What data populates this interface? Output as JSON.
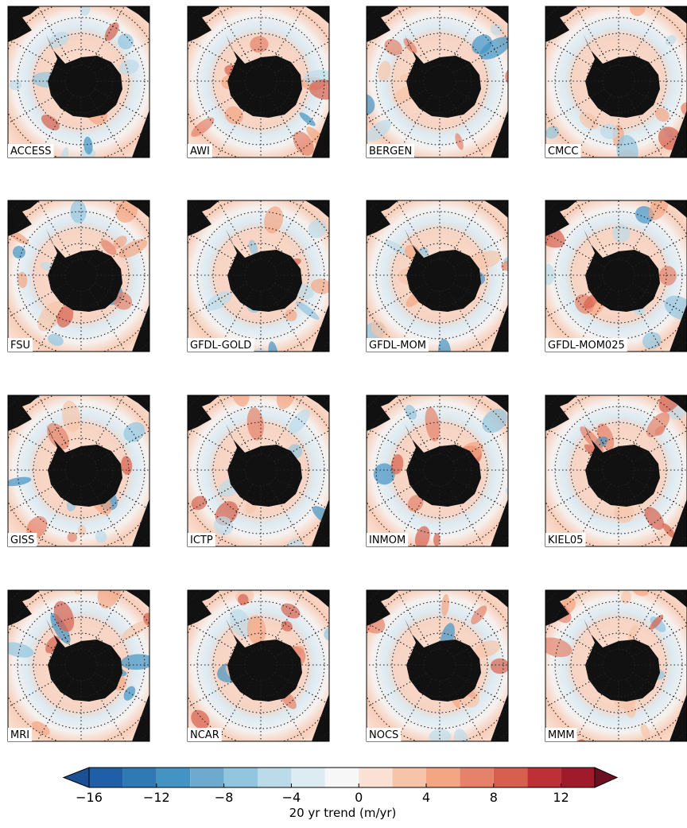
{
  "panels": [
    "ACCESS",
    "AWI",
    "BERGEN",
    "CMCC",
    "FSU",
    "GFDL-GOLD",
    "GFDL-MOM",
    "GFDL-MOM025",
    "GISS",
    "ICTP",
    "INMOM",
    "KIEL05",
    "MRI",
    "NCAR",
    "NOCS",
    "MMM"
  ],
  "colorbar": {
    "levels": [
      -16,
      -14,
      -12,
      -10,
      -8,
      -6,
      -4,
      -2,
      0,
      2,
      4,
      6,
      8,
      10,
      12,
      14
    ],
    "colors": [
      "#1f5fa8",
      "#2f79b5",
      "#4393c3",
      "#6eaad0",
      "#92c5de",
      "#bcdbea",
      "#ddecf3",
      "#f7f7f7",
      "#fbe1d4",
      "#f7c4a9",
      "#f4a582",
      "#e4826a",
      "#d6604d",
      "#bd3136",
      "#9f1a2b"
    ],
    "under_color": "#1c4f94",
    "over_color": "#6d0f22",
    "ticks": [
      {
        "value": -16,
        "label": "−16"
      },
      {
        "value": -12,
        "label": "−12"
      },
      {
        "value": -8,
        "label": "−8"
      },
      {
        "value": -4,
        "label": "−4"
      },
      0,
      4,
      8,
      12
    ],
    "label": "20 yr trend (m/yr)"
  }
}
